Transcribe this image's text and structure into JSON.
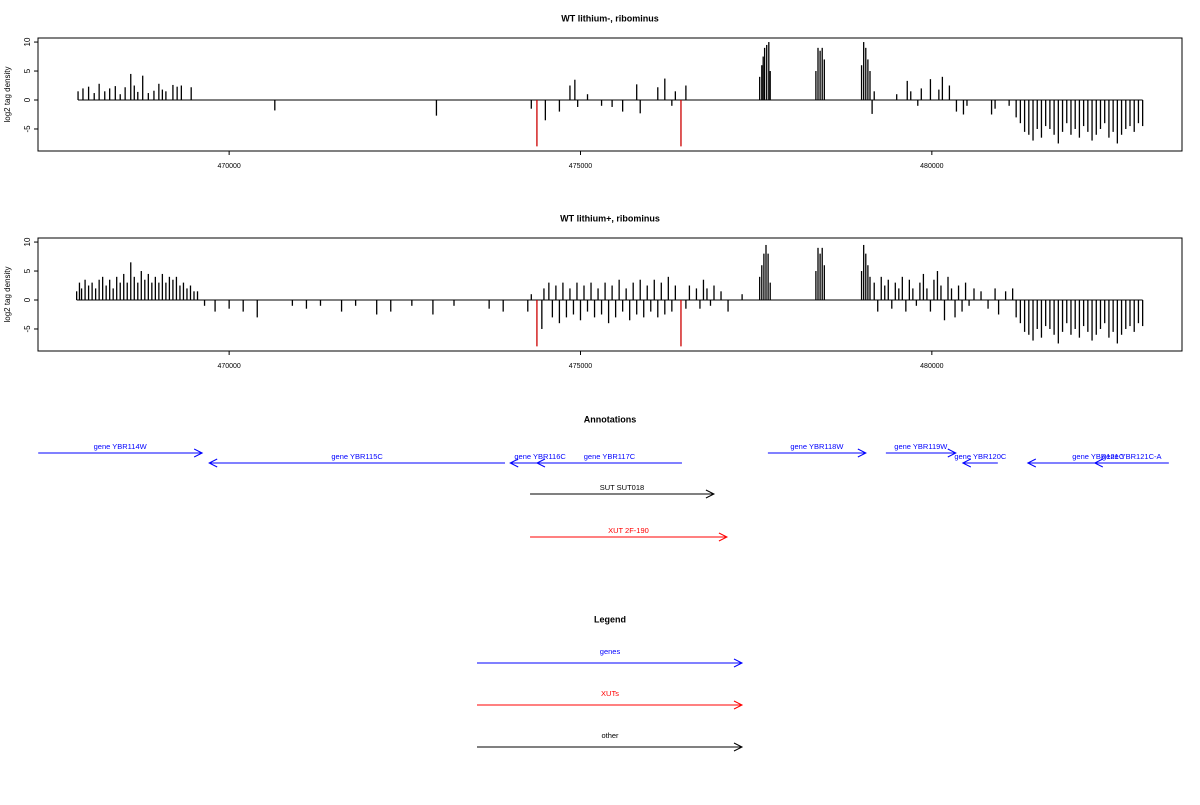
{
  "chart_data": [
    {
      "type": "spike",
      "title": "WT lithium-, ribominus",
      "y_label": "log2 tag density",
      "xlim": [
        467280,
        483560
      ],
      "ylim": [
        -8.8,
        10.7
      ],
      "xticks": [
        470000,
        475000,
        480000
      ],
      "yticks": [
        -5,
        0,
        5,
        10
      ],
      "series": [
        {
          "color": "#000000",
          "x": [
            467850,
            467920,
            468000,
            468080,
            468150,
            468230,
            468300,
            468380,
            468450,
            468520,
            468600,
            468650,
            468700,
            468770,
            468850,
            468930,
            469000,
            469050,
            469100,
            469200,
            469260,
            469320,
            469460,
            470650,
            472950,
            474300,
            474500,
            474700,
            474850,
            474920,
            474960,
            475100,
            475300,
            475450,
            475600,
            475800,
            475850,
            476100,
            476200,
            476300,
            476350,
            476500,
            477550,
            477580,
            477600,
            477620,
            477650,
            477680,
            477700,
            478350,
            478380,
            478410,
            478440,
            478470,
            479000,
            479030,
            479060,
            479090,
            479120,
            479150,
            479180,
            479500,
            479650,
            479700,
            479800,
            479850,
            479980,
            480100,
            480150,
            480250,
            480350,
            480450,
            480500,
            480850,
            480900,
            481100,
            481200,
            481260,
            481320,
            481380,
            481440,
            481500,
            481560,
            481620,
            481680,
            481740,
            481800,
            481860,
            481920,
            481980,
            482040,
            482100,
            482160,
            482220,
            482280,
            482340,
            482400,
            482460,
            482520,
            482580,
            482640,
            482700,
            482760,
            482820,
            482880,
            482940,
            483000
          ],
          "values": [
            1.5,
            2,
            2.3,
            1.2,
            2.8,
            1.5,
            2,
            2.4,
            1,
            2.2,
            4.5,
            2.5,
            1.4,
            4.2,
            1.2,
            1.6,
            2.8,
            1.8,
            1.5,
            2.6,
            2.3,
            2.5,
            2.2,
            -1.8,
            -2.7,
            -1.5,
            -3.5,
            -2,
            2.5,
            3.5,
            -1.2,
            1,
            -1,
            -1.2,
            -2,
            2.7,
            -2.3,
            2.2,
            3.7,
            -1,
            1.5,
            2.5,
            4,
            6,
            7.5,
            9,
            9.5,
            10,
            5,
            5,
            9,
            8.5,
            9,
            7,
            6,
            10,
            9,
            7,
            5,
            -2.4,
            1.5,
            1,
            3.3,
            1.5,
            -1,
            2,
            3.6,
            1.8,
            4,
            2.5,
            -2,
            -2.5,
            -1,
            -2.5,
            -1.5,
            -1,
            -3,
            -4,
            -5.5,
            -6,
            -7,
            -5,
            -6.5,
            -4.5,
            -5,
            -6,
            -7.5,
            -5.5,
            -4,
            -6,
            -5,
            -6.5,
            -4.5,
            -5.5,
            -7,
            -6,
            -5,
            -4,
            -6.5,
            -5.5,
            -7.5,
            -6,
            -5,
            -4.5,
            -5.5,
            -4,
            -4.5
          ]
        },
        {
          "color": "#cc0000",
          "x": [
            474380,
            476430
          ],
          "values": [
            -8,
            -8
          ]
        }
      ]
    },
    {
      "type": "spike",
      "title": "WT lithium+, ribominus",
      "y_label": "log2 tag density",
      "xlim": [
        467280,
        483560
      ],
      "ylim": [
        -8.8,
        10.7
      ],
      "xticks": [
        470000,
        475000,
        480000
      ],
      "yticks": [
        -5,
        0,
        5,
        10
      ],
      "series": [
        {
          "color": "#000000",
          "x": [
            467830,
            467870,
            467900,
            467950,
            468000,
            468050,
            468100,
            468150,
            468200,
            468250,
            468300,
            468350,
            468400,
            468450,
            468500,
            468550,
            468600,
            468650,
            468700,
            468750,
            468800,
            468850,
            468900,
            468950,
            469000,
            469050,
            469100,
            469150,
            469200,
            469250,
            469300,
            469350,
            469400,
            469450,
            469500,
            469550,
            469650,
            469800,
            470000,
            470200,
            470400,
            470900,
            471100,
            471300,
            471600,
            471800,
            472100,
            472300,
            472600,
            472900,
            473200,
            473700,
            473900,
            474250,
            474300,
            474450,
            474480,
            474550,
            474600,
            474650,
            474700,
            474750,
            474800,
            474850,
            474900,
            474950,
            475000,
            475050,
            475100,
            475150,
            475200,
            475250,
            475300,
            475350,
            475400,
            475450,
            475500,
            475550,
            475600,
            475650,
            475700,
            475750,
            475800,
            475850,
            475900,
            475950,
            476000,
            476050,
            476100,
            476150,
            476200,
            476250,
            476300,
            476350,
            476500,
            476550,
            476650,
            476700,
            476750,
            476800,
            476850,
            476900,
            477000,
            477100,
            477300,
            477550,
            477580,
            477610,
            477640,
            477670,
            477700,
            478350,
            478380,
            478410,
            478440,
            478470,
            479000,
            479030,
            479060,
            479090,
            479120,
            479180,
            479230,
            479280,
            479330,
            479380,
            479430,
            479480,
            479530,
            479580,
            479630,
            479680,
            479730,
            479780,
            479830,
            479880,
            479930,
            479980,
            480030,
            480080,
            480130,
            480180,
            480230,
            480280,
            480330,
            480380,
            480430,
            480480,
            480530,
            480600,
            480700,
            480800,
            480900,
            480950,
            481050,
            481150,
            481200,
            481260,
            481320,
            481380,
            481440,
            481500,
            481560,
            481620,
            481680,
            481740,
            481800,
            481860,
            481920,
            481980,
            482040,
            482100,
            482160,
            482220,
            482280,
            482340,
            482400,
            482460,
            482520,
            482580,
            482640,
            482700,
            482760,
            482820,
            482880,
            482940,
            483000
          ],
          "values": [
            1.5,
            3,
            2,
            3.5,
            2.5,
            3,
            2,
            3.5,
            4,
            2.5,
            3.5,
            2,
            4,
            3,
            4.5,
            3,
            6.5,
            4,
            3,
            5,
            3.5,
            4.5,
            3,
            4,
            3,
            4.5,
            3,
            4,
            3.5,
            4,
            2.5,
            3,
            2,
            2.5,
            1.5,
            1.5,
            -1,
            -2,
            -1.5,
            -2,
            -3,
            -1,
            -1.5,
            -1,
            -2,
            -1,
            -2.5,
            -2,
            -1,
            -2.5,
            -1,
            -1.5,
            -2,
            -2,
            1,
            -5,
            2,
            3,
            -3,
            2.5,
            -4,
            3,
            -3,
            2,
            -2.5,
            3,
            -3.5,
            2.5,
            -2,
            3,
            -3,
            2,
            -2.5,
            3,
            -4,
            2.5,
            -3,
            3.5,
            -2,
            2,
            -3.5,
            3,
            -2.5,
            3.5,
            -3,
            2.5,
            -2,
            3.5,
            -3,
            3,
            -2.5,
            4,
            -2,
            2.5,
            -1.5,
            2.5,
            2,
            -1.5,
            3.5,
            2,
            -1,
            2.5,
            1.5,
            -2,
            1,
            4,
            6,
            8,
            9.5,
            8,
            3,
            5,
            9,
            8,
            9,
            6,
            5,
            9.5,
            8,
            6,
            4,
            3,
            -2,
            4,
            2.5,
            3.5,
            -1.5,
            3,
            2,
            4,
            -2,
            3.5,
            2,
            -1,
            3,
            4.5,
            2,
            -2,
            3.5,
            5,
            2.5,
            -3.5,
            4,
            2,
            -3,
            2.5,
            -2,
            3,
            -1,
            2,
            1.5,
            -1.5,
            2,
            -2.5,
            1.5,
            2,
            -3,
            -4,
            -5.5,
            -6,
            -7,
            -5,
            -6.5,
            -4.5,
            -5,
            -6,
            -7.5,
            -5.5,
            -4,
            -6,
            -5,
            -6.5,
            -4.5,
            -5.5,
            -7,
            -6,
            -5,
            -4,
            -6.5,
            -5.5,
            -7.5,
            -6,
            -5,
            -4.5,
            -5.5,
            -4,
            -4.5
          ]
        },
        {
          "color": "#cc0000",
          "x": [
            474380,
            476430
          ],
          "values": [
            -8,
            -8
          ]
        }
      ]
    }
  ],
  "annotations": {
    "title": "Annotations",
    "items": [
      {
        "label": "gene YBR114W",
        "start": 467283,
        "end": 469616,
        "strand": "+",
        "color": "#0000ff"
      },
      {
        "label": "gene YBR115C",
        "start": 469716,
        "end": 473926,
        "strand": "-",
        "color": "#0000ff"
      },
      {
        "label": "gene YBR116C",
        "start": 474000,
        "end": 474851,
        "strand": "-",
        "color": "#0000ff"
      },
      {
        "label": "gene YBR117C",
        "start": 474381,
        "end": 476444,
        "strand": "-",
        "color": "#0000ff"
      },
      {
        "label": "gene YBR118W",
        "start": 477667,
        "end": 479061,
        "strand": "+",
        "color": "#0000ff"
      },
      {
        "label": "gene YBR119W",
        "start": 479346,
        "end": 480341,
        "strand": "+",
        "color": "#0000ff"
      },
      {
        "label": "gene YBR120C",
        "start": 480441,
        "end": 480939,
        "strand": "-",
        "color": "#0000ff"
      },
      {
        "label": "gene YBR121C",
        "start": 481366,
        "end": 483371,
        "strand": "-",
        "color": "#0000ff"
      },
      {
        "label": "gene YBR121C-A",
        "start": 482319,
        "end": 483371,
        "strand": "-",
        "color": "#0000ff"
      },
      {
        "label": "SUT SUT018",
        "start": 474282,
        "end": 476899,
        "strand": "+",
        "color": "#000000"
      },
      {
        "label": "XUT 2F-190",
        "start": 474282,
        "end": 477084,
        "strand": "+",
        "color": "#ff0000"
      }
    ]
  },
  "legend": {
    "title": "Legend",
    "items": [
      {
        "label": "genes",
        "color": "#0000ff"
      },
      {
        "label": "XUTs",
        "color": "#ff0000"
      },
      {
        "label": "other",
        "color": "#000000"
      }
    ]
  }
}
